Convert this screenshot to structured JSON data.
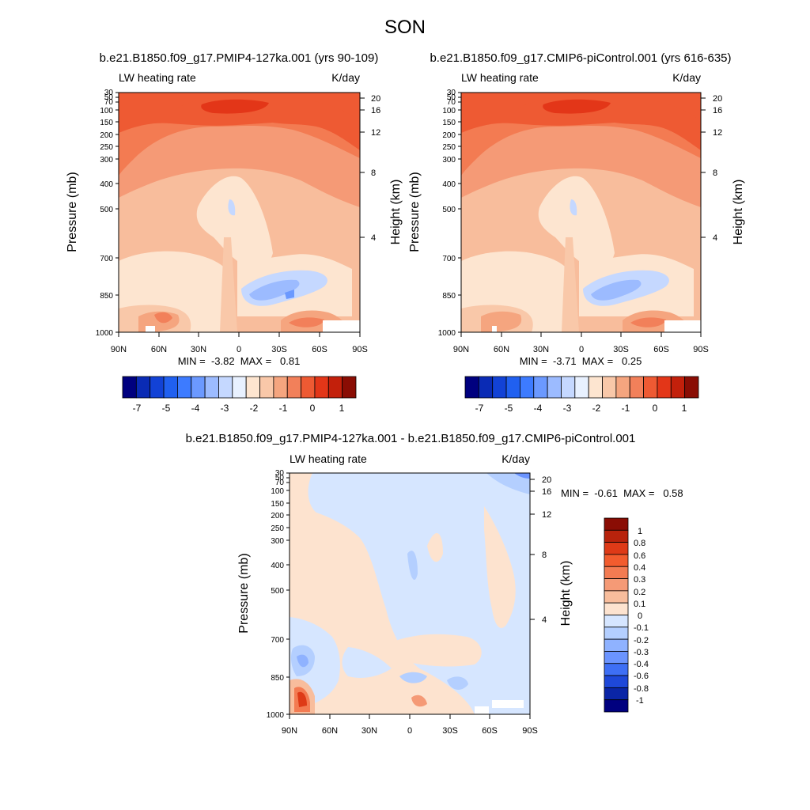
{
  "figure": {
    "title": "SON"
  },
  "chart_data": [
    {
      "type": "heatmap",
      "title": "b.e21.B1850.f09_g17.PMIP4-127ka.001 (yrs 90-109)",
      "left_string": "LW heating rate",
      "right_string": "K/day",
      "xlabel": "",
      "ylabel": "Pressure (mb)",
      "y2label": "Height (km)",
      "x_ticks": [
        "90N",
        "60N",
        "30N",
        "0",
        "30S",
        "60S",
        "90S"
      ],
      "y_ticks": [
        30,
        50,
        70,
        100,
        150,
        200,
        250,
        300,
        400,
        500,
        700,
        850,
        1000
      ],
      "y2_ticks": [
        20,
        16,
        12,
        8,
        4
      ],
      "ylim": [
        1000,
        30
      ],
      "stats": "MIN =  -3.82  MAX =   0.81",
      "colorbar": {
        "levels": [
          "-7",
          "-5",
          "-4",
          "-3",
          "-2",
          "-1",
          "0",
          "1"
        ],
        "colors": [
          "#00007f",
          "#0a2bb5",
          "#1242d6",
          "#2060f0",
          "#3d7bff",
          "#6b99ff",
          "#9cbbff",
          "#c5d8ff",
          "#e8f1ff",
          "#fde5d0",
          "#f9c8a9",
          "#f5a57f",
          "#f2805a",
          "#ee5a33",
          "#e33618",
          "#c3200b",
          "#8a0d04"
        ]
      }
    },
    {
      "type": "heatmap",
      "title": "b.e21.B1850.f09_g17.CMIP6-piControl.001 (yrs 616-635)",
      "left_string": "LW heating rate",
      "right_string": "K/day",
      "xlabel": "",
      "ylabel": "Pressure (mb)",
      "y2label": "Height (km)",
      "x_ticks": [
        "90N",
        "60N",
        "30N",
        "0",
        "30S",
        "60S",
        "90S"
      ],
      "y_ticks": [
        30,
        50,
        70,
        100,
        150,
        200,
        250,
        300,
        400,
        500,
        700,
        850,
        1000
      ],
      "y2_ticks": [
        20,
        16,
        12,
        8,
        4
      ],
      "ylim": [
        1000,
        30
      ],
      "stats": "MIN =  -3.71  MAX =   0.25",
      "colorbar": {
        "levels": [
          "-7",
          "-5",
          "-4",
          "-3",
          "-2",
          "-1",
          "0",
          "1"
        ],
        "colors": [
          "#00007f",
          "#0a2bb5",
          "#1242d6",
          "#2060f0",
          "#3d7bff",
          "#6b99ff",
          "#9cbbff",
          "#c5d8ff",
          "#e8f1ff",
          "#fde5d0",
          "#f9c8a9",
          "#f5a57f",
          "#f2805a",
          "#ee5a33",
          "#e33618",
          "#c3200b",
          "#8a0d04"
        ]
      }
    },
    {
      "type": "heatmap",
      "title": "b.e21.B1850.f09_g17.PMIP4-127ka.001 - b.e21.B1850.f09_g17.CMIP6-piControl.001",
      "left_string": "LW heating rate",
      "right_string": "K/day",
      "xlabel": "",
      "ylabel": "Pressure (mb)",
      "y2label": "Height (km)",
      "x_ticks": [
        "90N",
        "60N",
        "30N",
        "0",
        "30S",
        "60S",
        "90S"
      ],
      "y_ticks": [
        30,
        50,
        70,
        100,
        150,
        200,
        250,
        300,
        400,
        500,
        700,
        850,
        1000
      ],
      "y2_ticks": [
        20,
        16,
        12,
        8,
        4
      ],
      "ylim": [
        1000,
        30
      ],
      "stats": "MIN =  -0.61  MAX =   0.58",
      "colorbar": {
        "levels": [
          "1",
          "0.8",
          "0.6",
          "0.4",
          "0.3",
          "0.2",
          "0.1",
          "0",
          "-0.1",
          "-0.2",
          "-0.3",
          "-0.4",
          "-0.6",
          "-0.8",
          "-1"
        ],
        "colors": [
          "#8a0d04",
          "#b8230c",
          "#de3a17",
          "#f25c2e",
          "#f37b52",
          "#f59a76",
          "#f8bd9c",
          "#fde3cf",
          "#d6e6ff",
          "#b4cfff",
          "#8fb2ff",
          "#6b94ff",
          "#3e6ff5",
          "#1e48d9",
          "#0a25a6",
          "#00007f"
        ]
      }
    }
  ]
}
